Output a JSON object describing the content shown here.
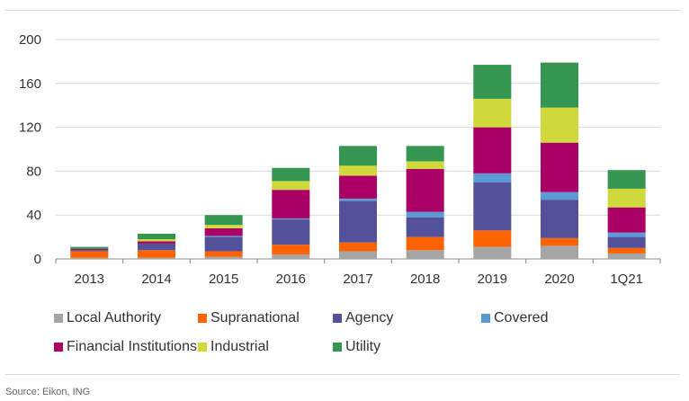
{
  "chart_data": {
    "type": "bar",
    "stacked": true,
    "categories": [
      "2013",
      "2014",
      "2015",
      "2016",
      "2017",
      "2018",
      "2019",
      "2020",
      "1Q21"
    ],
    "series": [
      {
        "name": "Local Authority",
        "color": "#a5a5a5",
        "values": [
          1,
          1,
          2,
          4,
          7,
          8,
          11,
          12,
          5
        ]
      },
      {
        "name": "Supranational",
        "color": "#ff6200",
        "values": [
          6,
          7,
          5,
          9,
          8,
          12,
          15,
          7,
          5
        ]
      },
      {
        "name": "Agency",
        "color": "#525199",
        "values": [
          1,
          6,
          13,
          23,
          38,
          18,
          44,
          35,
          10
        ]
      },
      {
        "name": "Covered",
        "color": "#5b9bd5",
        "values": [
          0,
          0,
          1,
          1,
          2,
          5,
          8,
          7,
          4
        ]
      },
      {
        "name": "Financial Institutions",
        "color": "#ab0066",
        "values": [
          1,
          2,
          7,
          26,
          21,
          39,
          42,
          45,
          23
        ]
      },
      {
        "name": "Industrial",
        "color": "#d0d93c",
        "values": [
          0,
          2,
          3,
          8,
          9,
          7,
          26,
          32,
          17
        ]
      },
      {
        "name": "Utility",
        "color": "#349651",
        "values": [
          2,
          5,
          9,
          12,
          18,
          14,
          31,
          41,
          17
        ]
      }
    ],
    "ylim": [
      0,
      200
    ],
    "yticks": [
      0,
      40,
      80,
      120,
      160,
      200
    ],
    "grid": true,
    "legend_position": "bottom",
    "source": "Source: Eikon, ING"
  }
}
